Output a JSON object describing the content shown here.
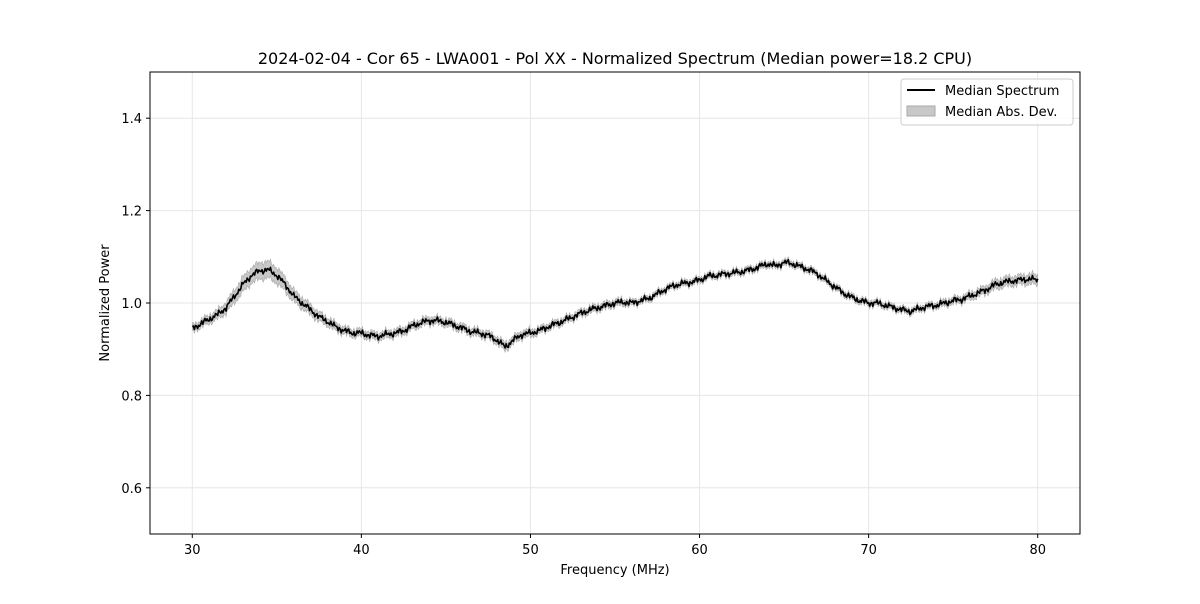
{
  "chart_data": {
    "type": "line",
    "title": "2024-02-04 - Cor 65 - LWA001 - Pol XX - Normalized Spectrum (Median power=18.2 CPU)",
    "xlabel": "Frequency (MHz)",
    "ylabel": "Normalized Power",
    "xlim": [
      27.5,
      82.5
    ],
    "ylim": [
      0.5,
      1.5
    ],
    "x_ticks": [
      30,
      40,
      50,
      60,
      70,
      80
    ],
    "x_tick_labels": [
      "30",
      "40",
      "50",
      "60",
      "70",
      "80"
    ],
    "y_ticks": [
      0.6,
      0.8,
      1.0,
      1.2,
      1.4
    ],
    "y_tick_labels": [
      "0.6",
      "0.8",
      "1.0",
      "1.2",
      "1.4"
    ],
    "grid": true,
    "legend": {
      "position": "top-right",
      "entries": [
        "Median Spectrum",
        "Median Abs. Dev."
      ]
    },
    "colors": {
      "line": "#000000",
      "band": "#c8c8c8",
      "band_edge": "#a9a9a9",
      "grid": "#e6e6e6"
    },
    "series": [
      {
        "name": "Median Spectrum",
        "x": [
          30,
          30.5,
          31,
          31.5,
          32,
          32.5,
          33,
          33.5,
          34,
          34.5,
          35,
          35.5,
          36,
          36.5,
          37,
          37.5,
          38,
          38.5,
          39,
          39.5,
          40,
          40.5,
          41,
          41.5,
          42,
          42.5,
          43,
          43.5,
          44,
          44.5,
          45,
          45.5,
          46,
          46.5,
          47,
          47.5,
          48,
          48.5,
          49,
          49.5,
          50,
          50.5,
          51,
          51.5,
          52,
          52.5,
          53,
          53.5,
          54,
          54.5,
          55,
          55.5,
          56,
          56.5,
          57,
          57.5,
          58,
          58.5,
          59,
          59.5,
          60,
          60.5,
          61,
          61.5,
          62,
          62.5,
          63,
          63.5,
          64,
          64.5,
          65,
          65.5,
          66,
          66.5,
          67,
          67.5,
          68,
          68.5,
          69,
          69.5,
          70,
          70.5,
          71,
          71.5,
          72,
          72.5,
          73,
          73.5,
          74,
          74.5,
          75,
          75.5,
          76,
          76.5,
          77,
          77.5,
          78,
          78.5,
          79,
          79.5,
          80
        ],
        "values": [
          0.945,
          0.955,
          0.965,
          0.975,
          0.99,
          1.015,
          1.04,
          1.06,
          1.07,
          1.072,
          1.06,
          1.04,
          1.015,
          1.0,
          0.985,
          0.97,
          0.96,
          0.948,
          0.94,
          0.935,
          0.935,
          0.93,
          0.928,
          0.932,
          0.935,
          0.94,
          0.95,
          0.957,
          0.962,
          0.962,
          0.958,
          0.952,
          0.945,
          0.938,
          0.935,
          0.93,
          0.92,
          0.905,
          0.92,
          0.932,
          0.935,
          0.94,
          0.948,
          0.955,
          0.962,
          0.97,
          0.978,
          0.985,
          0.99,
          0.995,
          1.0,
          1.002,
          1.0,
          1.005,
          1.01,
          1.02,
          1.03,
          1.038,
          1.042,
          1.045,
          1.05,
          1.058,
          1.06,
          1.063,
          1.065,
          1.068,
          1.072,
          1.078,
          1.085,
          1.08,
          1.088,
          1.085,
          1.078,
          1.072,
          1.062,
          1.048,
          1.035,
          1.022,
          1.012,
          1.005,
          1.0,
          1.0,
          0.995,
          0.99,
          0.985,
          0.982,
          0.988,
          0.993,
          0.995,
          1.0,
          1.005,
          1.008,
          1.015,
          1.022,
          1.03,
          1.04,
          1.045,
          1.048,
          1.05,
          1.052,
          1.05
        ]
      },
      {
        "name": "Median Abs. Dev.",
        "x": [
          30,
          30.5,
          31,
          31.5,
          32,
          32.5,
          33,
          33.5,
          34,
          34.5,
          35,
          35.5,
          36,
          36.5,
          37,
          37.5,
          38,
          38.5,
          39,
          39.5,
          40,
          40.5,
          41,
          41.5,
          42,
          42.5,
          43,
          43.5,
          44,
          44.5,
          45,
          45.5,
          46,
          46.5,
          47,
          47.5,
          48,
          48.5,
          49,
          49.5,
          50,
          50.5,
          51,
          51.5,
          52,
          52.5,
          53,
          53.5,
          54,
          54.5,
          55,
          55.5,
          56,
          56.5,
          57,
          57.5,
          58,
          58.5,
          59,
          59.5,
          60,
          60.5,
          61,
          61.5,
          62,
          62.5,
          63,
          63.5,
          64,
          64.5,
          65,
          65.5,
          66,
          66.5,
          67,
          67.5,
          68,
          68.5,
          69,
          69.5,
          70,
          70.5,
          71,
          71.5,
          72,
          72.5,
          73,
          73.5,
          74,
          74.5,
          75,
          75.5,
          76,
          76.5,
          77,
          77.5,
          78,
          78.5,
          79,
          79.5,
          80
        ],
        "mad": [
          0.008,
          0.008,
          0.009,
          0.01,
          0.012,
          0.014,
          0.016,
          0.017,
          0.018,
          0.018,
          0.017,
          0.015,
          0.013,
          0.012,
          0.011,
          0.01,
          0.009,
          0.009,
          0.008,
          0.008,
          0.008,
          0.008,
          0.008,
          0.008,
          0.008,
          0.008,
          0.008,
          0.008,
          0.008,
          0.008,
          0.008,
          0.008,
          0.008,
          0.008,
          0.008,
          0.008,
          0.008,
          0.009,
          0.008,
          0.008,
          0.008,
          0.007,
          0.007,
          0.007,
          0.007,
          0.007,
          0.007,
          0.007,
          0.007,
          0.007,
          0.007,
          0.007,
          0.006,
          0.006,
          0.006,
          0.006,
          0.006,
          0.006,
          0.006,
          0.006,
          0.006,
          0.006,
          0.006,
          0.006,
          0.006,
          0.006,
          0.006,
          0.006,
          0.006,
          0.006,
          0.006,
          0.006,
          0.006,
          0.006,
          0.006,
          0.006,
          0.006,
          0.006,
          0.006,
          0.006,
          0.006,
          0.006,
          0.006,
          0.006,
          0.006,
          0.006,
          0.006,
          0.006,
          0.006,
          0.007,
          0.007,
          0.007,
          0.008,
          0.008,
          0.009,
          0.01,
          0.01,
          0.01,
          0.01,
          0.011,
          0.011
        ]
      }
    ]
  }
}
